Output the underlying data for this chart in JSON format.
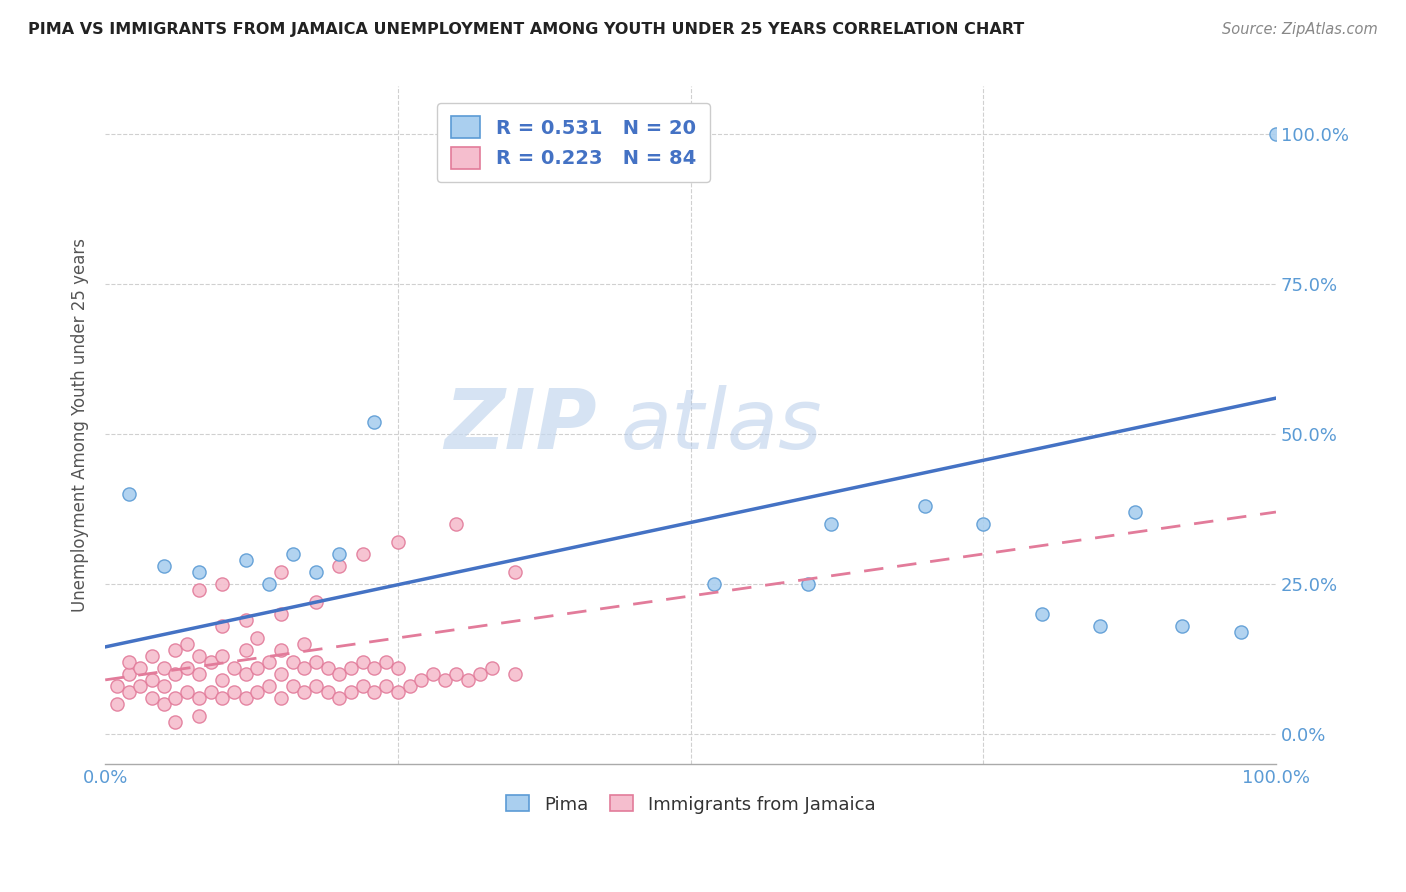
{
  "title": "PIMA VS IMMIGRANTS FROM JAMAICA UNEMPLOYMENT AMONG YOUTH UNDER 25 YEARS CORRELATION CHART",
  "source": "Source: ZipAtlas.com",
  "ylabel": "Unemployment Among Youth under 25 years",
  "ytick_labels": [
    "0.0%",
    "25.0%",
    "50.0%",
    "75.0%",
    "100.0%"
  ],
  "ytick_values": [
    0.0,
    0.25,
    0.5,
    0.75,
    1.0
  ],
  "watermark_zip": "ZIP",
  "watermark_atlas": "atlas",
  "legend_r_pima": "R = 0.531",
  "legend_n_pima": "N = 20",
  "legend_r_jamaica": "R = 0.223",
  "legend_n_jamaica": "N = 84",
  "pima_color": "#aacfef",
  "jamaica_color": "#f5bece",
  "pima_edge_color": "#5b9bd5",
  "jamaica_edge_color": "#e27b9a",
  "pima_line_color": "#4472c4",
  "jamaica_line_color": "#e27b9a",
  "background_color": "#ffffff",
  "grid_color": "#d0d0d0",
  "pima_x": [
    0.02,
    0.05,
    0.08,
    0.12,
    0.14,
    0.16,
    0.18,
    0.2,
    0.23,
    0.52,
    0.62,
    0.7,
    0.75,
    0.8,
    0.85,
    0.88,
    0.92,
    0.97,
    0.6,
    1.0
  ],
  "pima_y": [
    0.4,
    0.28,
    0.27,
    0.29,
    0.25,
    0.3,
    0.27,
    0.3,
    0.52,
    0.25,
    0.35,
    0.38,
    0.35,
    0.2,
    0.18,
    0.37,
    0.18,
    0.17,
    0.25,
    1.0
  ],
  "jamaica_x": [
    0.01,
    0.01,
    0.02,
    0.02,
    0.02,
    0.03,
    0.03,
    0.04,
    0.04,
    0.04,
    0.05,
    0.05,
    0.05,
    0.06,
    0.06,
    0.06,
    0.07,
    0.07,
    0.07,
    0.08,
    0.08,
    0.08,
    0.09,
    0.09,
    0.1,
    0.1,
    0.1,
    0.11,
    0.11,
    0.12,
    0.12,
    0.12,
    0.13,
    0.13,
    0.13,
    0.14,
    0.14,
    0.15,
    0.15,
    0.15,
    0.16,
    0.16,
    0.17,
    0.17,
    0.17,
    0.18,
    0.18,
    0.19,
    0.19,
    0.2,
    0.2,
    0.21,
    0.21,
    0.22,
    0.22,
    0.23,
    0.23,
    0.24,
    0.24,
    0.25,
    0.25,
    0.26,
    0.27,
    0.28,
    0.29,
    0.3,
    0.31,
    0.32,
    0.33,
    0.35,
    0.08,
    0.1,
    0.15,
    0.2,
    0.22,
    0.25,
    0.3,
    0.35,
    0.15,
    0.18,
    0.12,
    0.1,
    0.08,
    0.06
  ],
  "jamaica_y": [
    0.05,
    0.08,
    0.07,
    0.1,
    0.12,
    0.08,
    0.11,
    0.06,
    0.09,
    0.13,
    0.05,
    0.08,
    0.11,
    0.06,
    0.1,
    0.14,
    0.07,
    0.11,
    0.15,
    0.06,
    0.1,
    0.13,
    0.07,
    0.12,
    0.06,
    0.09,
    0.13,
    0.07,
    0.11,
    0.06,
    0.1,
    0.14,
    0.07,
    0.11,
    0.16,
    0.08,
    0.12,
    0.06,
    0.1,
    0.14,
    0.08,
    0.12,
    0.07,
    0.11,
    0.15,
    0.08,
    0.12,
    0.07,
    0.11,
    0.06,
    0.1,
    0.07,
    0.11,
    0.08,
    0.12,
    0.07,
    0.11,
    0.08,
    0.12,
    0.07,
    0.11,
    0.08,
    0.09,
    0.1,
    0.09,
    0.1,
    0.09,
    0.1,
    0.11,
    0.1,
    0.24,
    0.25,
    0.27,
    0.28,
    0.3,
    0.32,
    0.35,
    0.27,
    0.2,
    0.22,
    0.19,
    0.18,
    0.03,
    0.02
  ],
  "pima_trend_x0": 0.0,
  "pima_trend_y0": 0.145,
  "pima_trend_x1": 1.0,
  "pima_trend_y1": 0.56,
  "jamaica_trend_x0": 0.0,
  "jamaica_trend_y0": 0.09,
  "jamaica_trend_x1": 1.0,
  "jamaica_trend_y1": 0.37,
  "xlim": [
    0.0,
    1.0
  ],
  "ylim": [
    -0.05,
    1.08
  ]
}
